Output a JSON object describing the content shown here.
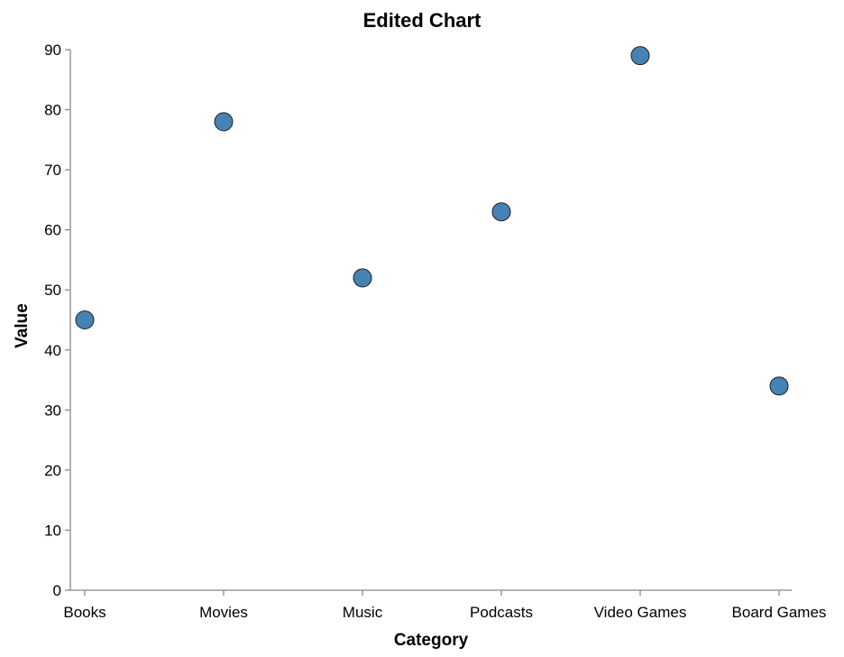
{
  "chart_data": {
    "type": "scatter",
    "title": "Edited Chart",
    "xlabel": "Category",
    "ylabel": "Value",
    "categories": [
      "Books",
      "Movies",
      "Music",
      "Podcasts",
      "Video Games",
      "Board Games"
    ],
    "values": [
      45,
      78,
      52,
      63,
      89,
      34
    ],
    "ylim": [
      0,
      90
    ],
    "yticks": [
      "0",
      "10",
      "20",
      "30",
      "40",
      "50",
      "60",
      "70",
      "80",
      "90"
    ],
    "grid": false,
    "legend": "none",
    "point_color": "#4682b4",
    "point_stroke": "#1f1f1f"
  }
}
